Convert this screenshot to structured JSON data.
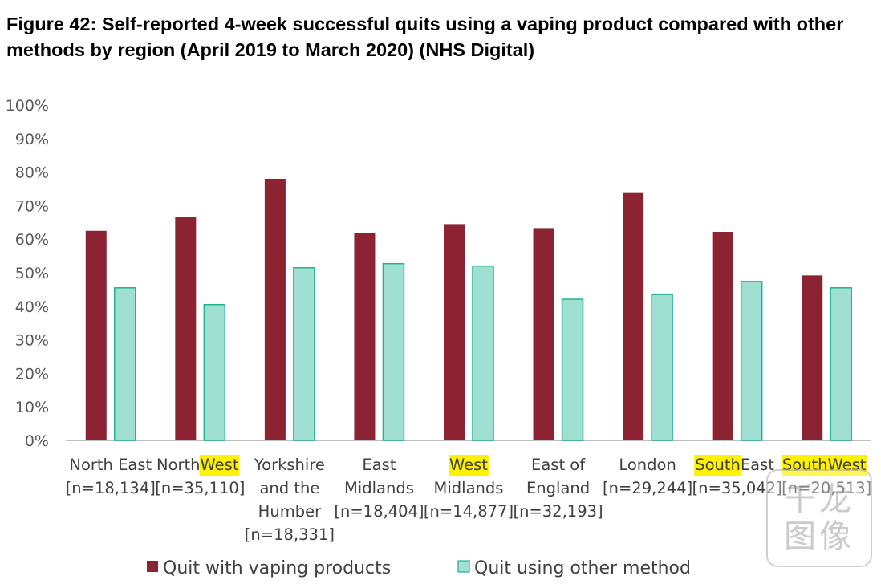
{
  "title": "Figure 42: Self-reported 4-week successful quits using a vaping product compared with other methods by region (April 2019 to March 2020) (NHS Digital)",
  "watermark_text": "千龙\n图像",
  "colors": {
    "vaping": "#8B2332",
    "other": "#9FE0D3",
    "other_stroke": "#22B28F",
    "highlight": "#FFF200",
    "axis": "#BFBFBF"
  },
  "chart_data": {
    "type": "bar",
    "title": "",
    "ylim": [
      0,
      100
    ],
    "y_ticks": [
      "0%",
      "10%",
      "20%",
      "30%",
      "40%",
      "50%",
      "60%",
      "70%",
      "80%",
      "90%",
      "100%"
    ],
    "grid": false,
    "legend_position": "bottom",
    "categories": [
      {
        "lines": [
          [
            {
              "t": "North East"
            }
          ],
          [
            {
              "t": "[n=18,134]"
            }
          ]
        ]
      },
      {
        "lines": [
          [
            {
              "t": "North "
            },
            {
              "t": "West",
              "hl": true
            }
          ],
          [
            {
              "t": "[n=35,110]"
            }
          ]
        ]
      },
      {
        "lines": [
          [
            {
              "t": "Yorkshire"
            }
          ],
          [
            {
              "t": "and the"
            }
          ],
          [
            {
              "t": "Humber"
            }
          ],
          [
            {
              "t": "[n=18,331]"
            }
          ]
        ]
      },
      {
        "lines": [
          [
            {
              "t": "East"
            }
          ],
          [
            {
              "t": "Midlands"
            }
          ],
          [
            {
              "t": "[n=18,404]"
            }
          ]
        ]
      },
      {
        "lines": [
          [
            {
              "t": "West",
              "hl": true
            }
          ],
          [
            {
              "t": "Midlands"
            }
          ],
          [
            {
              "t": "[n=14,877]"
            }
          ]
        ]
      },
      {
        "lines": [
          [
            {
              "t": "East of"
            }
          ],
          [
            {
              "t": "England"
            }
          ],
          [
            {
              "t": "[n=32,193]"
            }
          ]
        ]
      },
      {
        "lines": [
          [
            {
              "t": "London"
            }
          ],
          [
            {
              "t": "[n=29,244]"
            }
          ]
        ]
      },
      {
        "lines": [
          [
            {
              "t": "South",
              "hl": true
            },
            {
              "t": " East"
            }
          ],
          [
            {
              "t": "[n=35,042]"
            }
          ]
        ]
      },
      {
        "lines": [
          [
            {
              "t": "South",
              "hl": true
            },
            {
              "t": " "
            },
            {
              "t": "West",
              "hl": true
            }
          ],
          [
            {
              "t": "[n=20,513]"
            }
          ]
        ]
      }
    ],
    "series": [
      {
        "name": "Quit with vaping products",
        "values": [
          62.5,
          66.5,
          78,
          61.8,
          64.5,
          63.3,
          74,
          62.2,
          49.2
        ]
      },
      {
        "name": "Quit using other method",
        "values": [
          45.5,
          40.5,
          51.5,
          52.7,
          52,
          42.1,
          43.5,
          47.4,
          45.5
        ]
      }
    ]
  }
}
